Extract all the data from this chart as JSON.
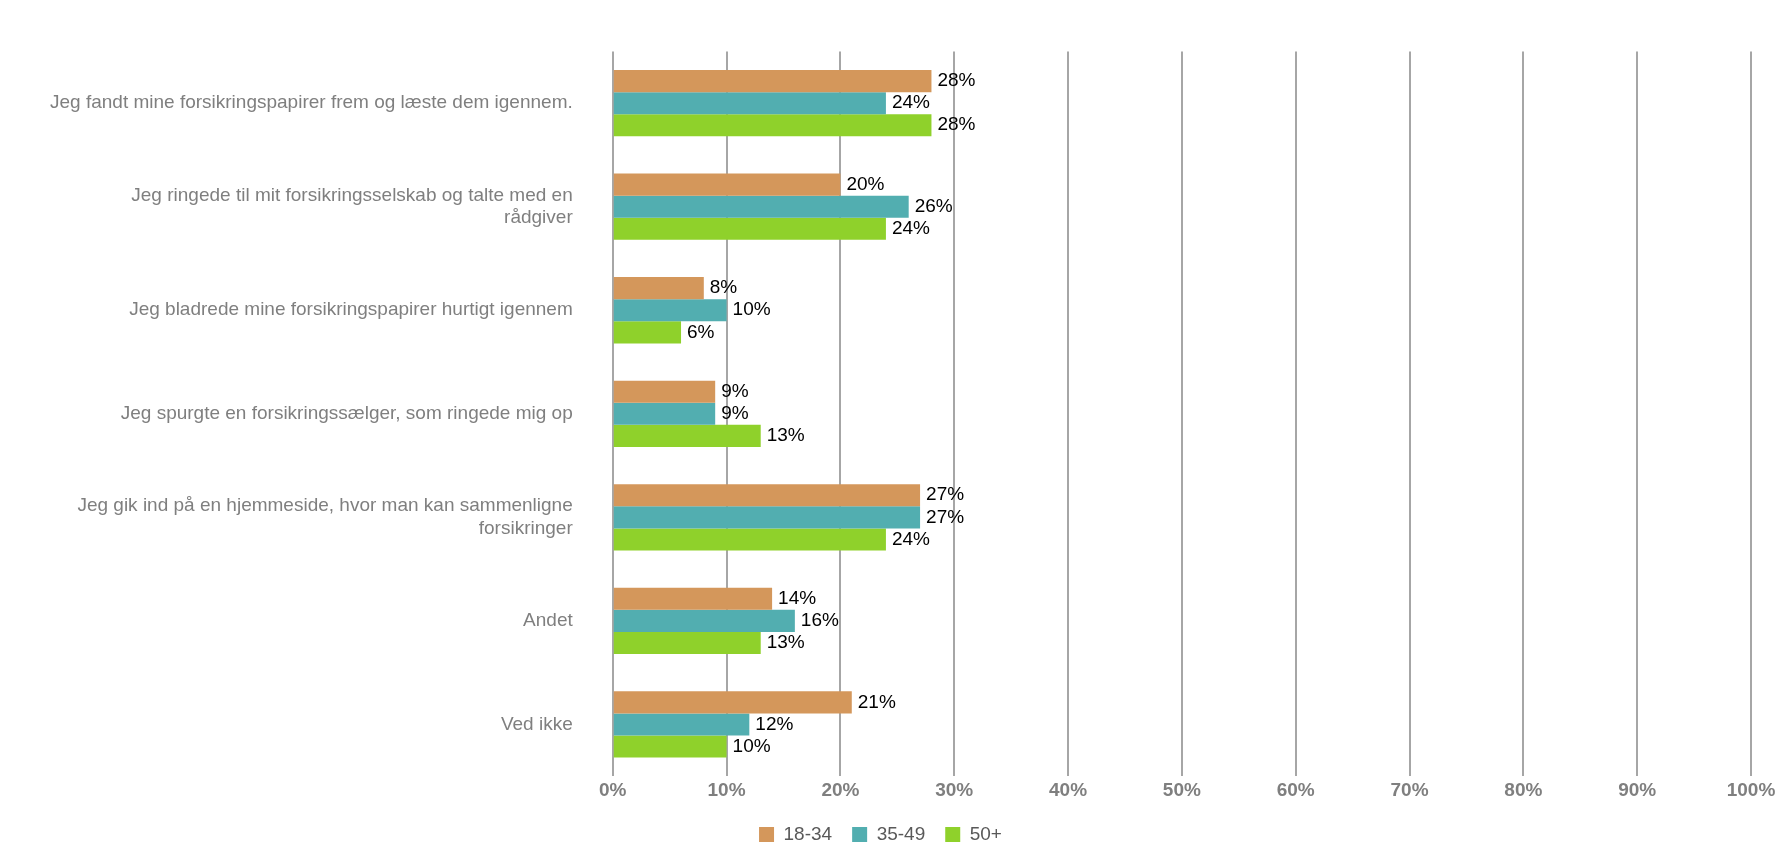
{
  "chart_data": {
    "type": "bar",
    "orientation": "horizontal",
    "categories": [
      "Jeg fandt mine forsikringspapirer frem og læste dem igennem.",
      "Jeg ringede til mit forsikringsselskab og talte med en rådgiver",
      "Jeg bladrede mine forsikringspapirer hurtigt igennem",
      "Jeg spurgte en forsikringssælger, som ringede mig op",
      "Jeg gik ind på en hjemmeside, hvor man kan sammenligne forsikringer",
      "Andet",
      "Ved ikke"
    ],
    "series": [
      {
        "name": "18-34",
        "color": "#d4975b",
        "values": [
          28,
          20,
          8,
          9,
          27,
          14,
          21
        ],
        "value_labels": [
          "28%",
          "20%",
          "8%",
          "9%",
          "27%",
          "14%",
          "21%"
        ]
      },
      {
        "name": "35-49",
        "color": "#52aeb0",
        "values": [
          24,
          26,
          10,
          9,
          27,
          16,
          12
        ],
        "value_labels": [
          "24%",
          "26%",
          "10%",
          "9%",
          "27%",
          "16%",
          "12%"
        ]
      },
      {
        "name": "50+",
        "color": "#8fd12b",
        "values": [
          28,
          24,
          6,
          13,
          24,
          13,
          10
        ],
        "value_labels": [
          "28%",
          "24%",
          "6%",
          "13%",
          "24%",
          "13%",
          "10%"
        ]
      }
    ],
    "xlim": [
      0,
      100
    ],
    "xticks": [
      {
        "value": 0,
        "label": "0%"
      },
      {
        "value": 10,
        "label": "10%"
      },
      {
        "value": 20,
        "label": "20%"
      },
      {
        "value": 30,
        "label": "30%"
      },
      {
        "value": 40,
        "label": "40%"
      },
      {
        "value": 50,
        "label": "50%"
      },
      {
        "value": 60,
        "label": "60%"
      },
      {
        "value": 70,
        "label": "70%"
      },
      {
        "value": 80,
        "label": "80%"
      },
      {
        "value": 90,
        "label": "90%"
      },
      {
        "value": 100,
        "label": "100%"
      }
    ],
    "grid": "x",
    "legend": "bottom"
  }
}
